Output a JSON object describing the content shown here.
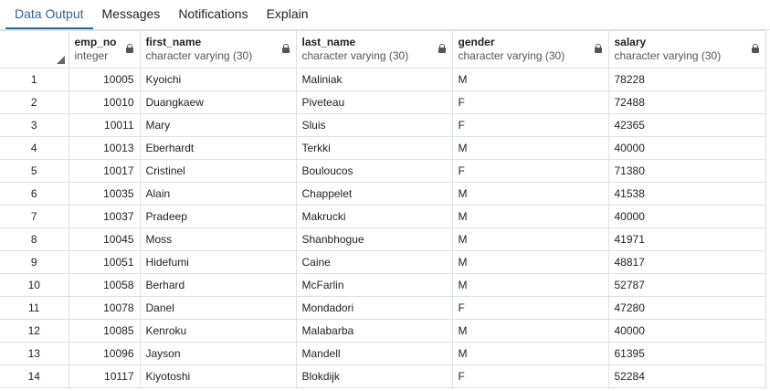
{
  "tabs": [
    {
      "label": "Data Output",
      "active": true
    },
    {
      "label": "Messages",
      "active": false
    },
    {
      "label": "Notifications",
      "active": false
    },
    {
      "label": "Explain",
      "active": false
    }
  ],
  "columns": [
    {
      "name": "emp_no",
      "type": "integer"
    },
    {
      "name": "first_name",
      "type": "character varying (30)"
    },
    {
      "name": "last_name",
      "type": "character varying (30)"
    },
    {
      "name": "gender",
      "type": "character varying (30)"
    },
    {
      "name": "salary",
      "type": "character varying (30)"
    }
  ],
  "rows": [
    {
      "idx": "1",
      "emp_no": "10005",
      "first_name": "Kyoichi",
      "last_name": "Maliniak",
      "gender": "M",
      "salary": "78228"
    },
    {
      "idx": "2",
      "emp_no": "10010",
      "first_name": "Duangkaew",
      "last_name": "Piveteau",
      "gender": "F",
      "salary": "72488"
    },
    {
      "idx": "3",
      "emp_no": "10011",
      "first_name": "Mary",
      "last_name": "Sluis",
      "gender": "F",
      "salary": "42365"
    },
    {
      "idx": "4",
      "emp_no": "10013",
      "first_name": "Eberhardt",
      "last_name": "Terkki",
      "gender": "M",
      "salary": "40000"
    },
    {
      "idx": "5",
      "emp_no": "10017",
      "first_name": "Cristinel",
      "last_name": "Bouloucos",
      "gender": "F",
      "salary": "71380"
    },
    {
      "idx": "6",
      "emp_no": "10035",
      "first_name": "Alain",
      "last_name": "Chappelet",
      "gender": "M",
      "salary": "41538"
    },
    {
      "idx": "7",
      "emp_no": "10037",
      "first_name": "Pradeep",
      "last_name": "Makrucki",
      "gender": "M",
      "salary": "40000"
    },
    {
      "idx": "8",
      "emp_no": "10045",
      "first_name": "Moss",
      "last_name": "Shanbhogue",
      "gender": "M",
      "salary": "41971"
    },
    {
      "idx": "9",
      "emp_no": "10051",
      "first_name": "Hidefumi",
      "last_name": "Caine",
      "gender": "M",
      "salary": "48817"
    },
    {
      "idx": "10",
      "emp_no": "10058",
      "first_name": "Berhard",
      "last_name": "McFarlin",
      "gender": "M",
      "salary": "52787"
    },
    {
      "idx": "11",
      "emp_no": "10078",
      "first_name": "Danel",
      "last_name": "Mondadori",
      "gender": "F",
      "salary": "47280"
    },
    {
      "idx": "12",
      "emp_no": "10085",
      "first_name": "Kenroku",
      "last_name": "Malabarba",
      "gender": "M",
      "salary": "40000"
    },
    {
      "idx": "13",
      "emp_no": "10096",
      "first_name": "Jayson",
      "last_name": "Mandell",
      "gender": "M",
      "salary": "61395"
    },
    {
      "idx": "14",
      "emp_no": "10117",
      "first_name": "Kiyotoshi",
      "last_name": "Blokdijk",
      "gender": "F",
      "salary": "52284"
    }
  ],
  "colors": {
    "accent": "#326690",
    "grid_line": "#dde0e6"
  }
}
